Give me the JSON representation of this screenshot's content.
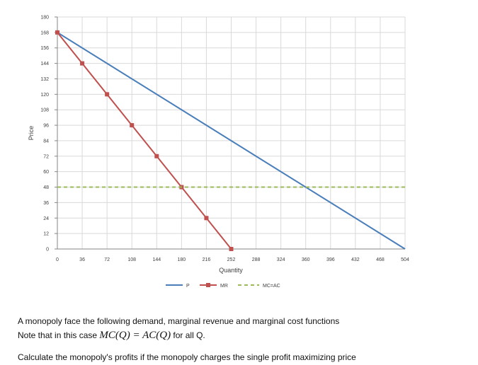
{
  "chart_data": {
    "type": "line",
    "xlabel": "Quantity",
    "ylabel": "Price",
    "xlim": [
      0,
      504
    ],
    "ylim": [
      0,
      180
    ],
    "x_ticks": [
      0,
      36,
      72,
      108,
      144,
      180,
      216,
      252,
      288,
      324,
      360,
      396,
      432,
      468,
      504
    ],
    "y_ticks": [
      0,
      12,
      24,
      36,
      48,
      60,
      72,
      84,
      96,
      108,
      120,
      132,
      144,
      156,
      168,
      180
    ],
    "grid": true,
    "legend_position": "bottom",
    "series": [
      {
        "name": "P",
        "color": "#4a7ebb",
        "style": "solid",
        "marker": "none",
        "x": [
          0,
          504
        ],
        "y": [
          168,
          0
        ]
      },
      {
        "name": "MR",
        "color": "#c0504d",
        "style": "solid",
        "marker": "square",
        "x": [
          0,
          36,
          72,
          108,
          144,
          180,
          216,
          252
        ],
        "y": [
          168,
          144,
          120,
          96,
          72,
          48,
          24,
          0
        ]
      },
      {
        "name": "MC=AC",
        "color": "#9bbb59",
        "style": "dashed",
        "marker": "none",
        "x": [
          0,
          504
        ],
        "y": [
          48,
          48
        ]
      }
    ]
  },
  "question": {
    "line1": "A monopoly face the following demand, marginal revenue and marginal cost functions",
    "line2_prefix": "Note that in this case",
    "line2_math": "MC(Q) = AC(Q)",
    "line2_suffix": "for all Q.",
    "line3": "Calculate the monopoly's profits if the monopoly charges the single profit maximizing price"
  }
}
